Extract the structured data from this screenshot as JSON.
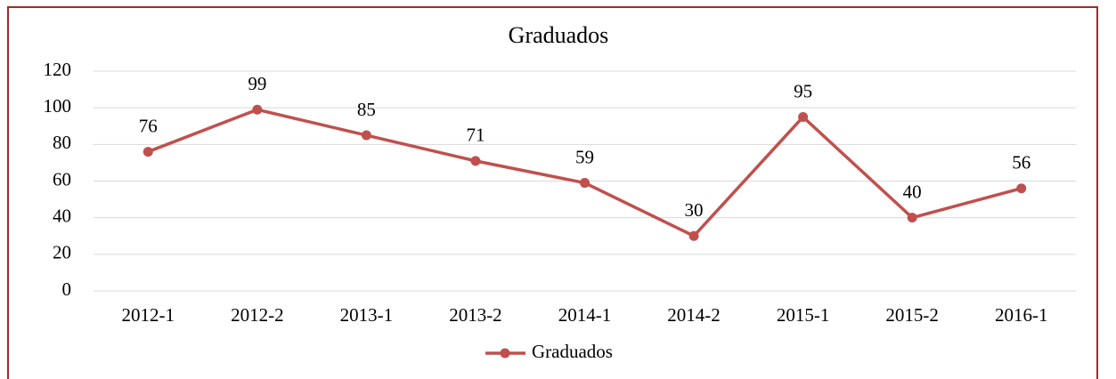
{
  "chart_data": {
    "type": "line",
    "title": "Graduados",
    "categories": [
      "2012-1",
      "2012-2",
      "2013-1",
      "2013-2",
      "2014-1",
      "2014-2",
      "2015-1",
      "2015-2",
      "2016-1"
    ],
    "series": [
      {
        "name": "Graduados",
        "color": "#c0504d",
        "values": [
          76,
          99,
          85,
          71,
          59,
          30,
          95,
          40,
          56
        ]
      }
    ],
    "ylim": [
      0,
      120
    ],
    "yticks": [
      0,
      20,
      40,
      60,
      80,
      100,
      120
    ],
    "grid": true,
    "legend": "bottom"
  }
}
